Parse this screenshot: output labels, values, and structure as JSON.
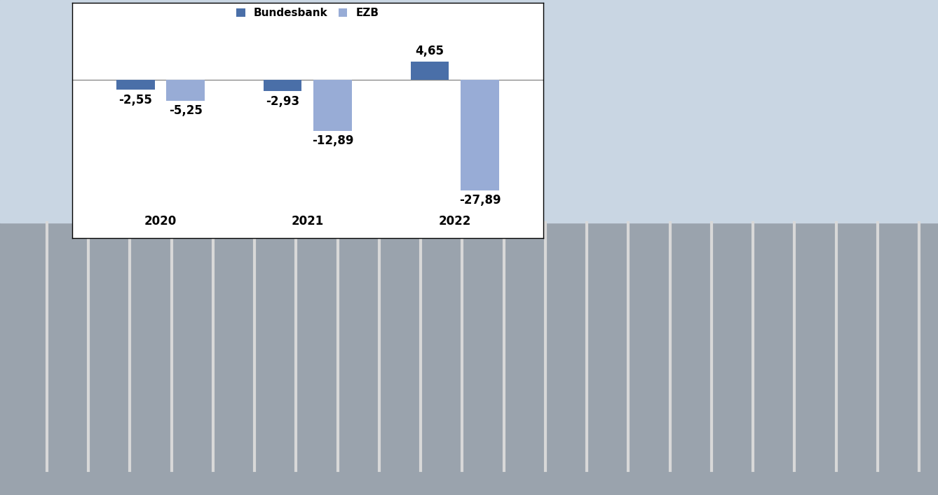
{
  "chart_data": {
    "type": "bar",
    "categories": [
      "2020",
      "2021",
      "2022"
    ],
    "series": [
      {
        "name": "Bundesbank",
        "color": "#4a6fa8",
        "values": [
          -2.55,
          -2.93,
          4.65
        ],
        "value_labels": [
          "-2,55",
          "-2,93",
          "4,65"
        ]
      },
      {
        "name": "EZB",
        "color": "#98acd6",
        "values": [
          -5.25,
          -12.89,
          -27.89
        ],
        "value_labels": [
          "-5,25",
          "-12,89",
          "-27,89"
        ]
      }
    ],
    "ylim": [
      -40,
      19.5
    ],
    "yticks": [],
    "grid": false,
    "legend": "upper center",
    "data_labels": true,
    "tick_labels": "x"
  }
}
